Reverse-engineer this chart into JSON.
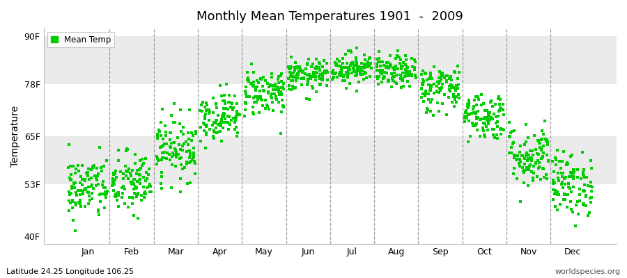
{
  "title": "Monthly Mean Temperatures 1901  -  2009",
  "ylabel": "Temperature",
  "subtitle_left": "Latitude 24.25 Longitude 106.25",
  "subtitle_right": "worldspecies.org",
  "legend_label": "Mean Temp",
  "dot_color": "#00CC00",
  "band_color_light": "#FFFFFF",
  "band_color_dark": "#EBEBEB",
  "fig_bg_color": "#FFFFFF",
  "yticks": [
    40,
    53,
    65,
    78,
    90
  ],
  "ytick_labels": [
    "40F",
    "53F",
    "65F",
    "78F",
    "90F"
  ],
  "ylim": [
    38,
    92
  ],
  "xlim": [
    0.0,
    13.0
  ],
  "months": [
    "Jan",
    "Feb",
    "Mar",
    "Apr",
    "May",
    "Jun",
    "Jul",
    "Aug",
    "Sep",
    "Oct",
    "Nov",
    "Dec"
  ],
  "n_years": 109,
  "monthly_means_f": [
    52,
    53,
    62,
    70,
    76,
    80,
    82,
    81,
    77,
    70,
    60,
    53
  ],
  "monthly_stds_f": [
    4,
    4,
    4,
    3,
    3,
    2,
    2,
    2,
    3,
    3,
    4,
    4
  ]
}
